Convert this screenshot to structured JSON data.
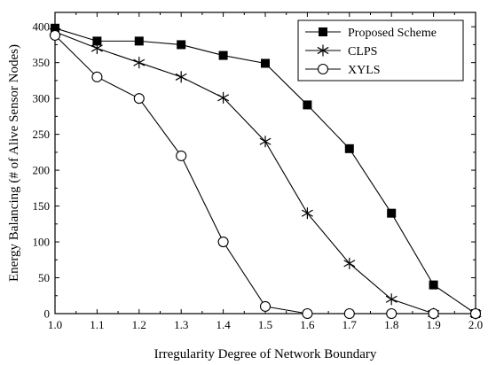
{
  "chart_data": {
    "type": "line",
    "title": "",
    "xlabel": "Irregularity Degree of Network Boundary",
    "ylabel": "Energy Balancing (# of Alive Sensor Nodes)",
    "x": [
      1.0,
      1.1,
      1.2,
      1.3,
      1.4,
      1.5,
      1.6,
      1.7,
      1.8,
      1.9,
      2.0
    ],
    "xlim": [
      1.0,
      2.0
    ],
    "ylim": [
      0,
      420
    ],
    "xticks": [
      "1.0",
      "1.1",
      "1.2",
      "1.3",
      "1.4",
      "1.5",
      "1.6",
      "1.7",
      "1.8",
      "1.9",
      "2.0"
    ],
    "yticks": [
      "0",
      "50",
      "100",
      "150",
      "200",
      "250",
      "300",
      "350",
      "400"
    ],
    "grid": false,
    "legend_position": "top-right",
    "series": [
      {
        "name": "Proposed Scheme",
        "marker": "filled-square",
        "color": "#000000",
        "values": [
          398,
          380,
          380,
          375,
          360,
          349,
          291,
          230,
          140,
          40,
          0
        ]
      },
      {
        "name": "CLPS",
        "marker": "asterisk",
        "color": "#000000",
        "values": [
          393,
          370,
          350,
          330,
          301,
          240,
          140,
          70,
          20,
          0,
          0
        ]
      },
      {
        "name": "XYLS",
        "marker": "open-circle",
        "color": "#000000",
        "values": [
          388,
          330,
          300,
          220,
          100,
          10,
          0,
          0,
          0,
          0,
          0
        ]
      }
    ]
  }
}
